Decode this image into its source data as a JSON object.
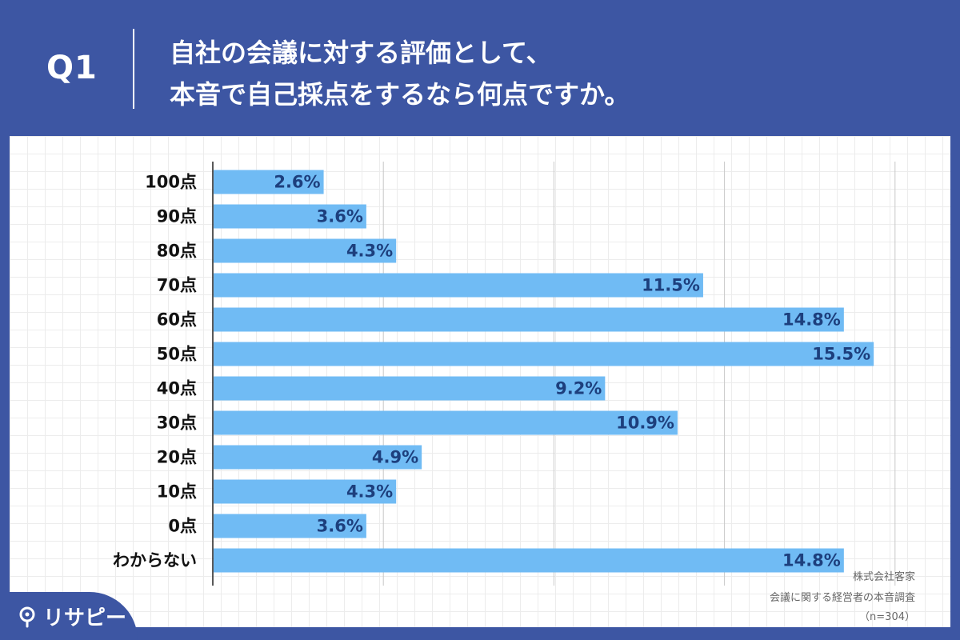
{
  "header": {
    "question_label": "Q1",
    "question_line1": "自社の会議に対する評価として、",
    "question_line2": "本音で自己採点をするなら何点ですか。"
  },
  "chart_data": {
    "type": "bar",
    "orientation": "horizontal",
    "categories": [
      "100点",
      "90点",
      "80点",
      "70点",
      "60点",
      "50点",
      "40点",
      "30点",
      "20点",
      "10点",
      "0点",
      "わからない"
    ],
    "values": [
      2.6,
      3.6,
      4.3,
      11.5,
      14.8,
      15.5,
      9.2,
      10.9,
      4.9,
      4.3,
      3.6,
      14.8
    ],
    "value_labels": [
      "2.6%",
      "3.6%",
      "4.3%",
      "11.5%",
      "14.8%",
      "15.5%",
      "9.2%",
      "10.9%",
      "4.9%",
      "4.3%",
      "3.6%",
      "14.8%"
    ],
    "xlim": [
      0,
      16
    ],
    "gridlines": [
      4,
      8,
      12,
      16
    ],
    "bar_color": "#70bbf4",
    "label_color": "#1d3f7d",
    "grid": true,
    "legend": "none"
  },
  "credit": {
    "line1": "株式会社客家",
    "line2": "会議に関する経営者の本音調査",
    "line3": "（n=304）"
  },
  "logo": {
    "text": "リサピー"
  },
  "colors": {
    "background": "#3d56a3",
    "panel": "#ffffff"
  }
}
